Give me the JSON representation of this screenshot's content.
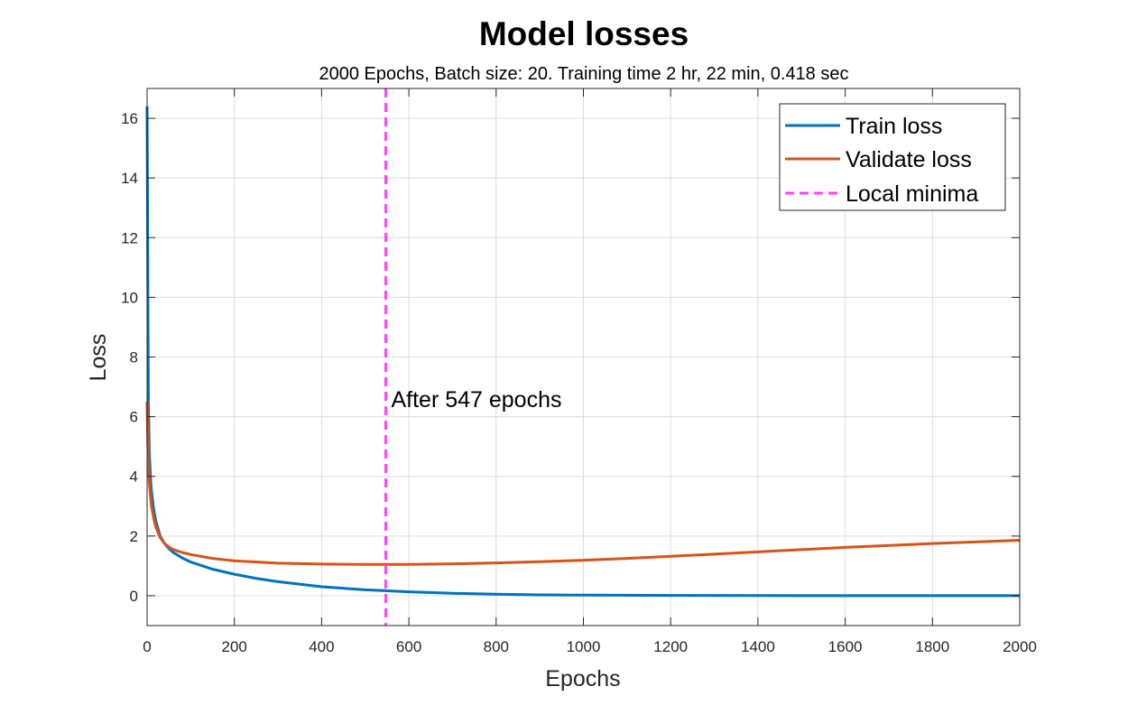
{
  "chart_data": {
    "type": "line",
    "title": "Model losses",
    "subtitle": "2000 Epochs, Batch size: 20. Training time 2 hr, 22 min, 0.418 sec",
    "xlabel": "Epochs",
    "ylabel": "Loss",
    "xlim": [
      0,
      2000
    ],
    "ylim": [
      -1,
      17
    ],
    "xticks": [
      0,
      200,
      400,
      600,
      800,
      1000,
      1200,
      1400,
      1600,
      1800,
      2000
    ],
    "yticks": [
      0,
      2,
      4,
      6,
      8,
      10,
      12,
      14,
      16
    ],
    "grid": true,
    "legend_position": "top-right",
    "colors": {
      "train": "#0072BD",
      "validate": "#D95319",
      "minima": "#FF44FF",
      "grid": "#dcdcdc",
      "axis": "#262626"
    },
    "series": [
      {
        "name": "Train loss",
        "x": [
          0,
          1,
          2,
          3,
          5,
          8,
          10,
          15,
          20,
          30,
          40,
          50,
          60,
          80,
          100,
          150,
          200,
          250,
          300,
          400,
          500,
          547,
          600,
          700,
          800,
          900,
          1000,
          1200,
          1400,
          1600,
          1800,
          2000
        ],
        "y": [
          16.4,
          13.0,
          9.5,
          6.5,
          4.8,
          3.9,
          3.5,
          2.9,
          2.5,
          2.0,
          1.75,
          1.58,
          1.45,
          1.27,
          1.13,
          0.89,
          0.72,
          0.58,
          0.47,
          0.3,
          0.2,
          0.17,
          0.13,
          0.08,
          0.05,
          0.03,
          0.02,
          0.01,
          0.005,
          0.003,
          0.002,
          0.001
        ]
      },
      {
        "name": "Validate loss",
        "x": [
          0,
          1,
          2,
          3,
          5,
          8,
          10,
          15,
          20,
          30,
          40,
          50,
          60,
          80,
          100,
          150,
          200,
          300,
          400,
          500,
          547,
          600,
          700,
          800,
          900,
          1000,
          1100,
          1200,
          1400,
          1600,
          1800,
          2000
        ],
        "y": [
          6.5,
          5.6,
          4.9,
          4.4,
          3.8,
          3.3,
          3.0,
          2.6,
          2.3,
          1.95,
          1.75,
          1.63,
          1.55,
          1.45,
          1.38,
          1.25,
          1.17,
          1.09,
          1.06,
          1.05,
          1.05,
          1.05,
          1.07,
          1.1,
          1.14,
          1.19,
          1.25,
          1.32,
          1.47,
          1.62,
          1.75,
          1.86
        ]
      }
    ],
    "minima": {
      "name": "Local minima",
      "x": 547,
      "annotation": "After 547 epochs",
      "annotation_y": 6.6
    }
  }
}
